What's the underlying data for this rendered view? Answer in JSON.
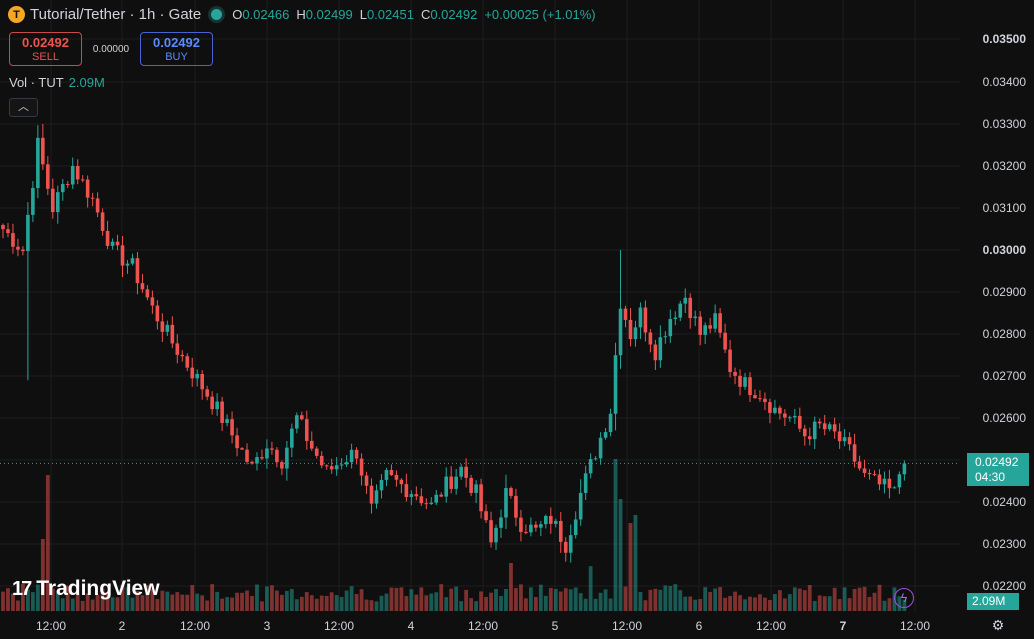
{
  "header": {
    "symbol_logo": "T",
    "title": "Tutorial/Tether · 1h · Gate",
    "ohlc": [
      {
        "k": "O",
        "v": "0.02466"
      },
      {
        "k": "H",
        "v": "0.02499"
      },
      {
        "k": "L",
        "v": "0.02451"
      },
      {
        "k": "C",
        "v": "0.02492"
      }
    ],
    "change": "+0.00025 (+1.01%)"
  },
  "trade": {
    "sell_price": "0.02492",
    "sell_label": "SELL",
    "spread": "0.00000",
    "buy_price": "0.02492",
    "buy_label": "BUY"
  },
  "volume_legend": {
    "label": "Vol · TUT",
    "value": "2.09M"
  },
  "price_axis": {
    "labels": [
      "0.03500",
      "0.03400",
      "0.03300",
      "0.03200",
      "0.03100",
      "0.03000",
      "0.02900",
      "0.02800",
      "0.02700",
      "0.02600",
      "0.02400",
      "0.02300",
      "0.02200"
    ],
    "bold_labels": [
      "0.03500",
      "0.03000"
    ],
    "current_price": "0.02492",
    "countdown": "04:30",
    "current_volume": "2.09M"
  },
  "time_axis": {
    "labels": [
      "12:00",
      "2",
      "12:00",
      "3",
      "12:00",
      "4",
      "12:00",
      "5",
      "12:00",
      "6",
      "12:00",
      "7",
      "12:00"
    ],
    "bold_labels": [
      "7"
    ]
  },
  "branding": {
    "name": "TradingView",
    "mark": "17"
  },
  "colors": {
    "up": "#26a69a",
    "down": "#ef5350",
    "background": "#0f0f0f",
    "grid": "#1e1e1e"
  },
  "icons": {
    "collapse": "chevron-up-icon",
    "bolt": "lightning-icon",
    "settings": "gear-icon"
  },
  "chart_data": {
    "type": "candlestick",
    "interval": "1h",
    "ylim": [
      0.0218,
      0.0352
    ],
    "x_ticks": [
      "12:00",
      "2",
      "12:00",
      "3",
      "12:00",
      "4",
      "12:00",
      "5",
      "12:00",
      "6",
      "12:00",
      "7",
      "12:00"
    ],
    "anchors": [
      [
        0,
        0.0305
      ],
      [
        4,
        0.03
      ],
      [
        7,
        0.0325
      ],
      [
        10,
        0.031
      ],
      [
        14,
        0.032
      ],
      [
        18,
        0.0312
      ],
      [
        22,
        0.03
      ],
      [
        26,
        0.0296
      ],
      [
        30,
        0.0286
      ],
      [
        34,
        0.0278
      ],
      [
        38,
        0.0271
      ],
      [
        42,
        0.0264
      ],
      [
        46,
        0.0256
      ],
      [
        50,
        0.0248
      ],
      [
        53,
        0.0254
      ],
      [
        56,
        0.025
      ],
      [
        59,
        0.026
      ],
      [
        62,
        0.0253
      ],
      [
        65,
        0.0247
      ],
      [
        68,
        0.025
      ],
      [
        71,
        0.0252
      ],
      [
        74,
        0.0238
      ],
      [
        77,
        0.0246
      ],
      [
        80,
        0.0244
      ],
      [
        83,
        0.0242
      ],
      [
        86,
        0.0239
      ],
      [
        89,
        0.0244
      ],
      [
        92,
        0.0248
      ],
      [
        95,
        0.0242
      ],
      [
        98,
        0.023
      ],
      [
        101,
        0.0242
      ],
      [
        104,
        0.0235
      ],
      [
        107,
        0.0233
      ],
      [
        110,
        0.0236
      ],
      [
        113,
        0.023
      ],
      [
        116,
        0.0242
      ],
      [
        119,
        0.0252
      ],
      [
        122,
        0.0262
      ],
      [
        124,
        0.0288
      ],
      [
        126,
        0.028
      ],
      [
        128,
        0.0285
      ],
      [
        131,
        0.0276
      ],
      [
        134,
        0.0284
      ],
      [
        137,
        0.0289
      ],
      [
        140,
        0.028
      ],
      [
        143,
        0.0283
      ],
      [
        146,
        0.0272
      ],
      [
        149,
        0.0268
      ],
      [
        152,
        0.0266
      ],
      [
        155,
        0.0262
      ],
      [
        158,
        0.026
      ],
      [
        161,
        0.0256
      ],
      [
        164,
        0.0258
      ],
      [
        167,
        0.0256
      ],
      [
        170,
        0.0252
      ],
      [
        173,
        0.0246
      ],
      [
        176,
        0.0244
      ],
      [
        179,
        0.0242
      ],
      [
        181,
        0.02492
      ]
    ],
    "volume_spikes": {
      "8": 0.45,
      "9": 0.85,
      "123": 0.95,
      "124": 0.7,
      "126": 0.55,
      "127": 0.6,
      "102": 0.3,
      "118": 0.28
    },
    "last": {
      "open": 0.02466,
      "high": 0.02499,
      "low": 0.02451,
      "close": 0.02492,
      "volume": "2.09M"
    }
  }
}
